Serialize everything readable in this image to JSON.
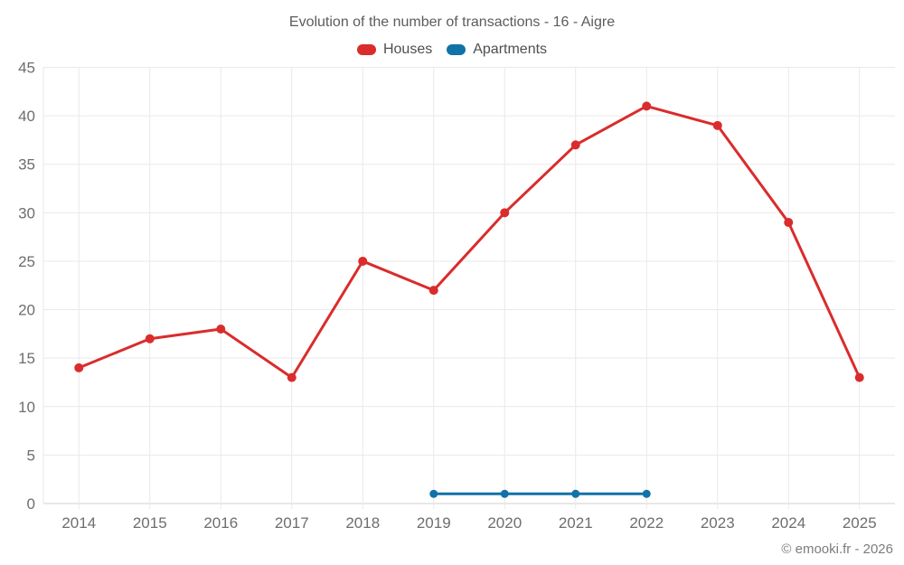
{
  "title": "Evolution of the number of transactions - 16 - Aigre",
  "legend": {
    "items": [
      {
        "label": "Houses",
        "color": "#da2c2c"
      },
      {
        "label": "Apartments",
        "color": "#1272a8"
      }
    ]
  },
  "footer": {
    "credit": "© emooki.fr - 2026"
  },
  "colors": {
    "houses": "#da2c2c",
    "apartments": "#1272a8",
    "gridline": "#e9e9e9",
    "axis_line": "#cfcfcf",
    "tick_label": "#6e6e6e"
  },
  "chart_data": {
    "type": "line",
    "title": "Evolution of the number of transactions - 16 - Aigre",
    "categories": [
      "2014",
      "2015",
      "2016",
      "2017",
      "2018",
      "2019",
      "2020",
      "2021",
      "2022",
      "2023",
      "2024",
      "2025"
    ],
    "series": [
      {
        "name": "Houses",
        "color": "#da2c2c",
        "values": [
          14,
          17,
          18,
          13,
          25,
          22,
          30,
          37,
          41,
          39,
          29,
          13
        ]
      },
      {
        "name": "Apartments",
        "color": "#1272a8",
        "values": [
          null,
          null,
          null,
          null,
          null,
          1,
          1,
          1,
          1,
          null,
          null,
          null
        ]
      }
    ],
    "xlabel": "",
    "ylabel": "",
    "ylim": [
      0,
      45
    ],
    "y_ticks": [
      0,
      5,
      10,
      15,
      20,
      25,
      30,
      35,
      40,
      45
    ],
    "grid": true,
    "legend_position": "top"
  }
}
